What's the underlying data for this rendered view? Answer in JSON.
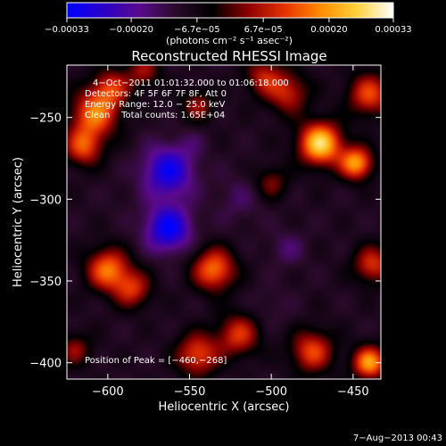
{
  "chart_data": {
    "type": "heatmap",
    "title": "Reconstructed RHESSI Image",
    "xlabel": "Heliocentric X (arcsec)",
    "ylabel": "Heliocentric Y (arcsec)",
    "xlim": [
      -625,
      -433
    ],
    "ylim": [
      -410,
      -218
    ],
    "xticks": [
      -600,
      -550,
      -500,
      -450
    ],
    "yticks": [
      -250,
      -300,
      -350,
      -400
    ],
    "xtick_labels": [
      "−600",
      "−550",
      "−500",
      "−450"
    ],
    "ytick_labels": [
      "−250",
      "−300",
      "−350",
      "−400"
    ],
    "colorbar": {
      "range": [
        -0.00033,
        0.00033
      ],
      "ticks": [
        -0.00033,
        -0.0002,
        -6.7e-05,
        6.7e-05,
        0.0002,
        0.00033
      ],
      "tick_labels": [
        "−0.00033",
        "−0.00020",
        "−6.7e−05",
        "6.7e−05",
        "0.00020",
        "0.00033"
      ],
      "unit_label": "(photons cm⁻² s⁻¹ asec⁻²)",
      "colors": [
        "#0000ff",
        "#2a00c8",
        "#5a0a8c",
        "#2a0a2a",
        "#000000",
        "#8c0000",
        "#e63200",
        "#ff8c00",
        "#ffd23c",
        "#ffffff"
      ]
    },
    "annotations": [
      "4−Oct−2011 01:01:32.000 to 01:06:18.000",
      "Detectors: 4F 5F 6F 7F 8F, Att 0",
      "Energy Range: 12.0 − 25.0 keV",
      "Clean    Total counts: 1.65E+04",
      "Position of Peak = [−460,−268]"
    ],
    "peak": {
      "x": -460,
      "y": -268
    },
    "sources": [
      {
        "x": -470,
        "y": -266,
        "value": 0.00033,
        "sigma": 9
      },
      {
        "x": -448,
        "y": -278,
        "value": 0.00026,
        "sigma": 7
      },
      {
        "x": -440,
        "y": -236,
        "value": 0.00018,
        "sigma": 9
      },
      {
        "x": -490,
        "y": -235,
        "value": 0.00014,
        "sigma": 9
      },
      {
        "x": -505,
        "y": -225,
        "value": 0.00012,
        "sigma": 8
      },
      {
        "x": -608,
        "y": -248,
        "value": 0.00022,
        "sigma": 10
      },
      {
        "x": -615,
        "y": -268,
        "value": 0.00018,
        "sigma": 8
      },
      {
        "x": -598,
        "y": -232,
        "value": 0.00015,
        "sigma": 8
      },
      {
        "x": -578,
        "y": -222,
        "value": 0.00011,
        "sigma": 7
      },
      {
        "x": -545,
        "y": -243,
        "value": 0.0001,
        "sigma": 7
      },
      {
        "x": -600,
        "y": -343,
        "value": 0.00022,
        "sigma": 9
      },
      {
        "x": -585,
        "y": -355,
        "value": 0.00015,
        "sigma": 8
      },
      {
        "x": -535,
        "y": -343,
        "value": 0.00022,
        "sigma": 9
      },
      {
        "x": -545,
        "y": -395,
        "value": 0.00018,
        "sigma": 9
      },
      {
        "x": -520,
        "y": -383,
        "value": 0.00016,
        "sigma": 9
      },
      {
        "x": -475,
        "y": -393,
        "value": 0.00018,
        "sigma": 9
      },
      {
        "x": -440,
        "y": -400,
        "value": 0.00026,
        "sigma": 7
      },
      {
        "x": -438,
        "y": -340,
        "value": 0.00016,
        "sigma": 8
      },
      {
        "x": -620,
        "y": -392,
        "value": 0.0001,
        "sigma": 7
      },
      {
        "x": -500,
        "y": -290,
        "value": 9e-05,
        "sigma": 7
      },
      {
        "x": -563,
        "y": -283,
        "value": -0.0003,
        "sigma": 11
      },
      {
        "x": -563,
        "y": -318,
        "value": -0.00032,
        "sigma": 10
      },
      {
        "x": -520,
        "y": -300,
        "value": -0.00014,
        "sigma": 11
      },
      {
        "x": -490,
        "y": -330,
        "value": -0.00015,
        "sigma": 8
      },
      {
        "x": -500,
        "y": -366,
        "value": -0.00012,
        "sigma": 9
      },
      {
        "x": -590,
        "y": -300,
        "value": -0.0001,
        "sigma": 10
      },
      {
        "x": -548,
        "y": -265,
        "value": -0.00012,
        "sigma": 7
      }
    ]
  },
  "footer": {
    "timestamp": "7−Aug−2013 00:43"
  }
}
